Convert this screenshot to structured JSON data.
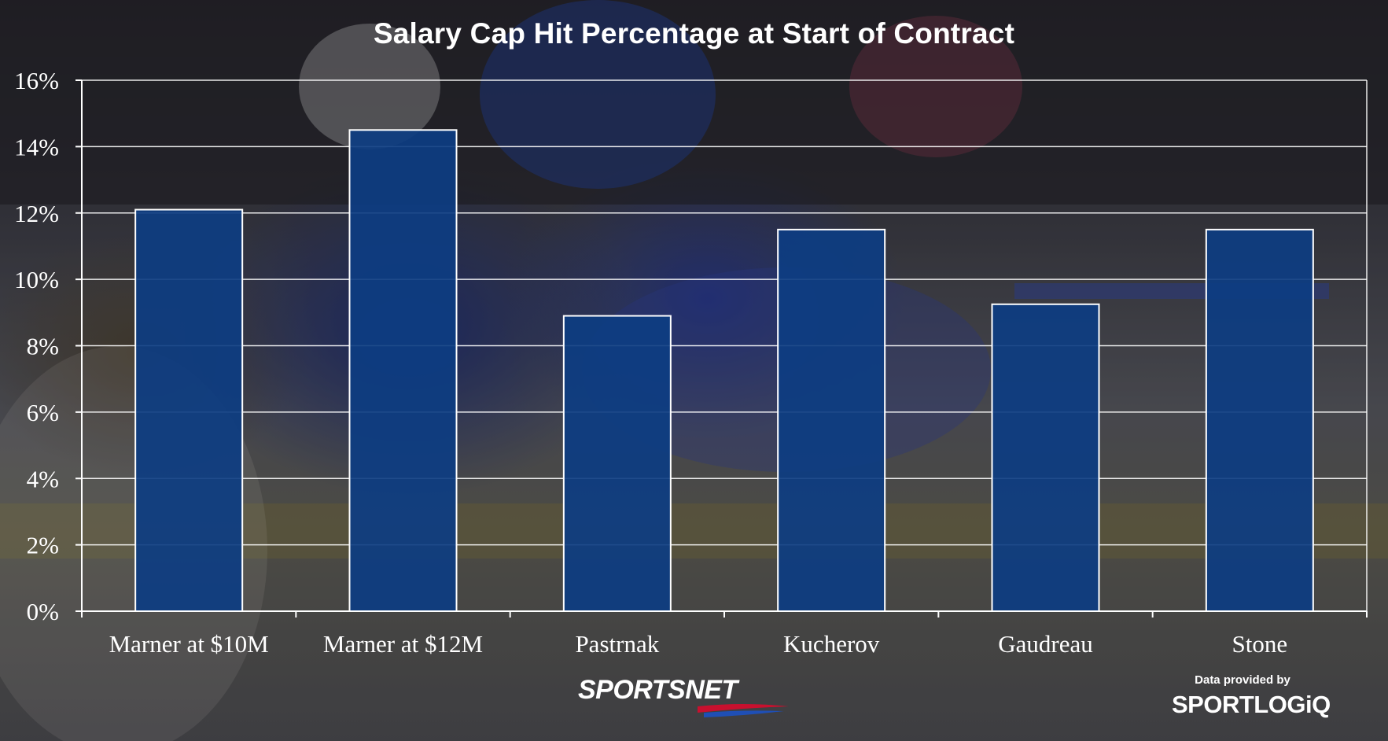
{
  "title": "Salary Cap Hit Percentage at Start of Contract",
  "chart_data": {
    "type": "bar",
    "categories": [
      "Marner at $10M",
      "Marner at $12M",
      "Pastrnak",
      "Kucherov",
      "Gaudreau",
      "Stone"
    ],
    "values": [
      12.1,
      14.5,
      8.9,
      11.5,
      9.25,
      11.5
    ],
    "ylim": [
      0,
      16
    ],
    "yticks": [
      "0%",
      "2%",
      "4%",
      "6%",
      "8%",
      "10%",
      "12%",
      "14%",
      "16%"
    ],
    "ytick_values": [
      0,
      2,
      4,
      6,
      8,
      10,
      12,
      14,
      16
    ],
    "grid": true,
    "bar_color": "#0d3d82"
  },
  "branding": {
    "publisher": "SPORTSNET",
    "credit_label": "Data provided by",
    "credit_org": "SPORTLOGiQ"
  }
}
